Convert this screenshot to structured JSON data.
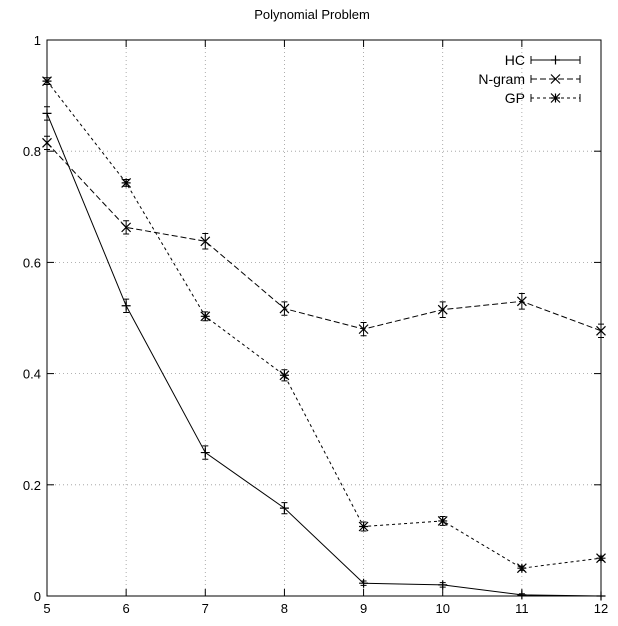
{
  "chart_data": {
    "type": "line",
    "title": "Polynomial Problem",
    "xlabel": "",
    "ylabel": "",
    "xlim": [
      5,
      12
    ],
    "ylim": [
      0,
      1
    ],
    "x": [
      5,
      6,
      7,
      8,
      9,
      10,
      11,
      12
    ],
    "xticks": [
      "5",
      "6",
      "7",
      "8",
      "9",
      "10",
      "11",
      "12"
    ],
    "yticks": [
      "0",
      "0.2",
      "0.4",
      "0.6",
      "0.8",
      "1"
    ],
    "grid": true,
    "legend_position": "top-right",
    "series": [
      {
        "name": "HC",
        "style": "solid",
        "marker": "plus",
        "values": [
          0.868,
          0.522,
          0.258,
          0.158,
          0.023,
          0.02,
          0.002,
          0.0
        ],
        "errors": [
          0.012,
          0.012,
          0.012,
          0.01,
          0.004,
          0.004,
          0.002,
          0.0
        ]
      },
      {
        "name": "N-gram",
        "style": "dashed",
        "marker": "x",
        "values": [
          0.815,
          0.663,
          0.638,
          0.517,
          0.48,
          0.515,
          0.53,
          0.477
        ],
        "errors": [
          0.012,
          0.012,
          0.014,
          0.012,
          0.012,
          0.014,
          0.014,
          0.012
        ]
      },
      {
        "name": "GP",
        "style": "dotted",
        "marker": "star",
        "values": [
          0.926,
          0.743,
          0.503,
          0.397,
          0.125,
          0.135,
          0.05,
          0.068
        ],
        "errors": [
          0.006,
          0.006,
          0.008,
          0.01,
          0.008,
          0.008,
          0.004,
          0.004
        ]
      }
    ]
  }
}
